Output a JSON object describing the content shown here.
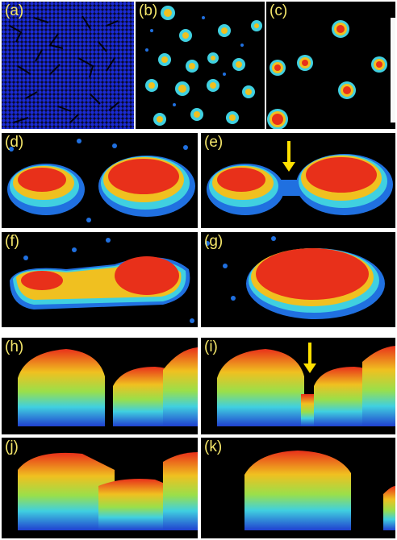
{
  "figure": {
    "panels": [
      {
        "id": "a",
        "label": "(a)"
      },
      {
        "id": "b",
        "label": "(b)"
      },
      {
        "id": "c",
        "label": "(c)"
      },
      {
        "id": "d",
        "label": "(d)"
      },
      {
        "id": "e",
        "label": "(e)"
      },
      {
        "id": "f",
        "label": "(f)"
      },
      {
        "id": "g",
        "label": "(g)"
      },
      {
        "id": "h",
        "label": "(h)"
      },
      {
        "id": "i",
        "label": "(i)"
      },
      {
        "id": "j",
        "label": "(j)"
      },
      {
        "id": "k",
        "label": "(k)"
      }
    ],
    "colors": {
      "background": "#000000",
      "label": "#f4e66a",
      "arrow": "#ffe000",
      "monolayer": "#1a2bd6",
      "red": "#e8301a",
      "yellow": "#f0c020",
      "cyan": "#40d0e0",
      "blue": "#2070e0"
    }
  }
}
